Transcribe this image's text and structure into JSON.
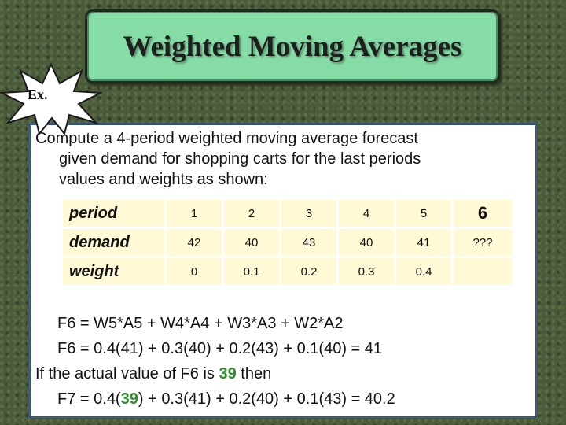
{
  "title": "Weighted Moving Averages",
  "badge": "Ex.",
  "intro": {
    "line1": "Compute a 4-period weighted moving average forecast",
    "line2": "given demand for shopping carts for the last periods",
    "line3": "values and weights as shown:"
  },
  "table": {
    "period_label": "period",
    "demand_label": "demand",
    "weight_label": "weight",
    "periods": [
      "1",
      "2",
      "3",
      "4",
      "5",
      "6"
    ],
    "demand": [
      "42",
      "40",
      "43",
      "40",
      "41",
      "???"
    ],
    "weights": [
      "0",
      "0.1",
      "0.2",
      "0.3",
      "0.4",
      ""
    ]
  },
  "formulas": {
    "f6_def": "F6 = W5*A5 + W4*A4 + W3*A3 + W2*A2",
    "f6_calc": "F6 = 0.4(41) + 0.3(40) + 0.2(43) + 0.1(40) = 41",
    "if_pre": "If the actual value of F6 is ",
    "actual": "39",
    "if_post": " then",
    "f7_pre": "F7 = 0.4(",
    "f7_post": ") + 0.3(41) + 0.2(40) + 0.1(43) = 40.2"
  },
  "colors": {
    "title_box": "#86dca6",
    "table_cell": "#fff9d6",
    "highlight": "#2e8b2e",
    "panel_border": "#3d5a78"
  }
}
